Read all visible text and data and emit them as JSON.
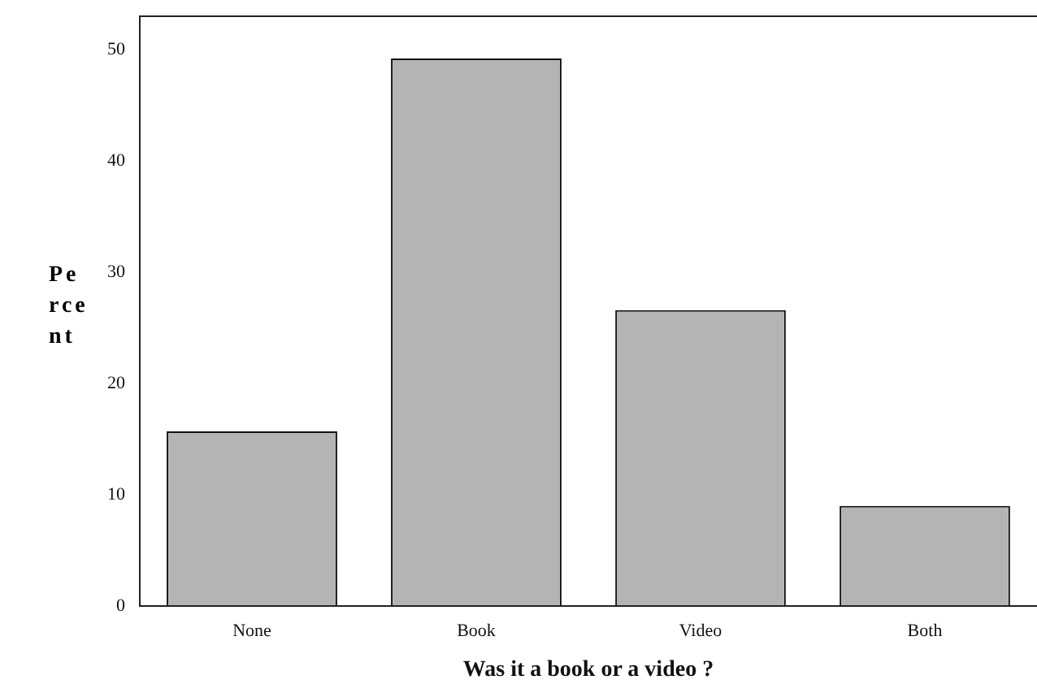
{
  "chart_data": {
    "type": "bar",
    "xlabel": "Was it a book or a video ?",
    "ylabel": "Percent",
    "categories": [
      "None",
      "Book",
      "Video",
      "Both"
    ],
    "values": [
      15.7,
      49.2,
      26.6,
      9.0
    ],
    "color": "#b4b4b4",
    "ylim": [
      0,
      53
    ],
    "yticks": [
      0,
      10,
      20,
      30,
      40,
      50
    ],
    "grid": false,
    "legend": false
  }
}
